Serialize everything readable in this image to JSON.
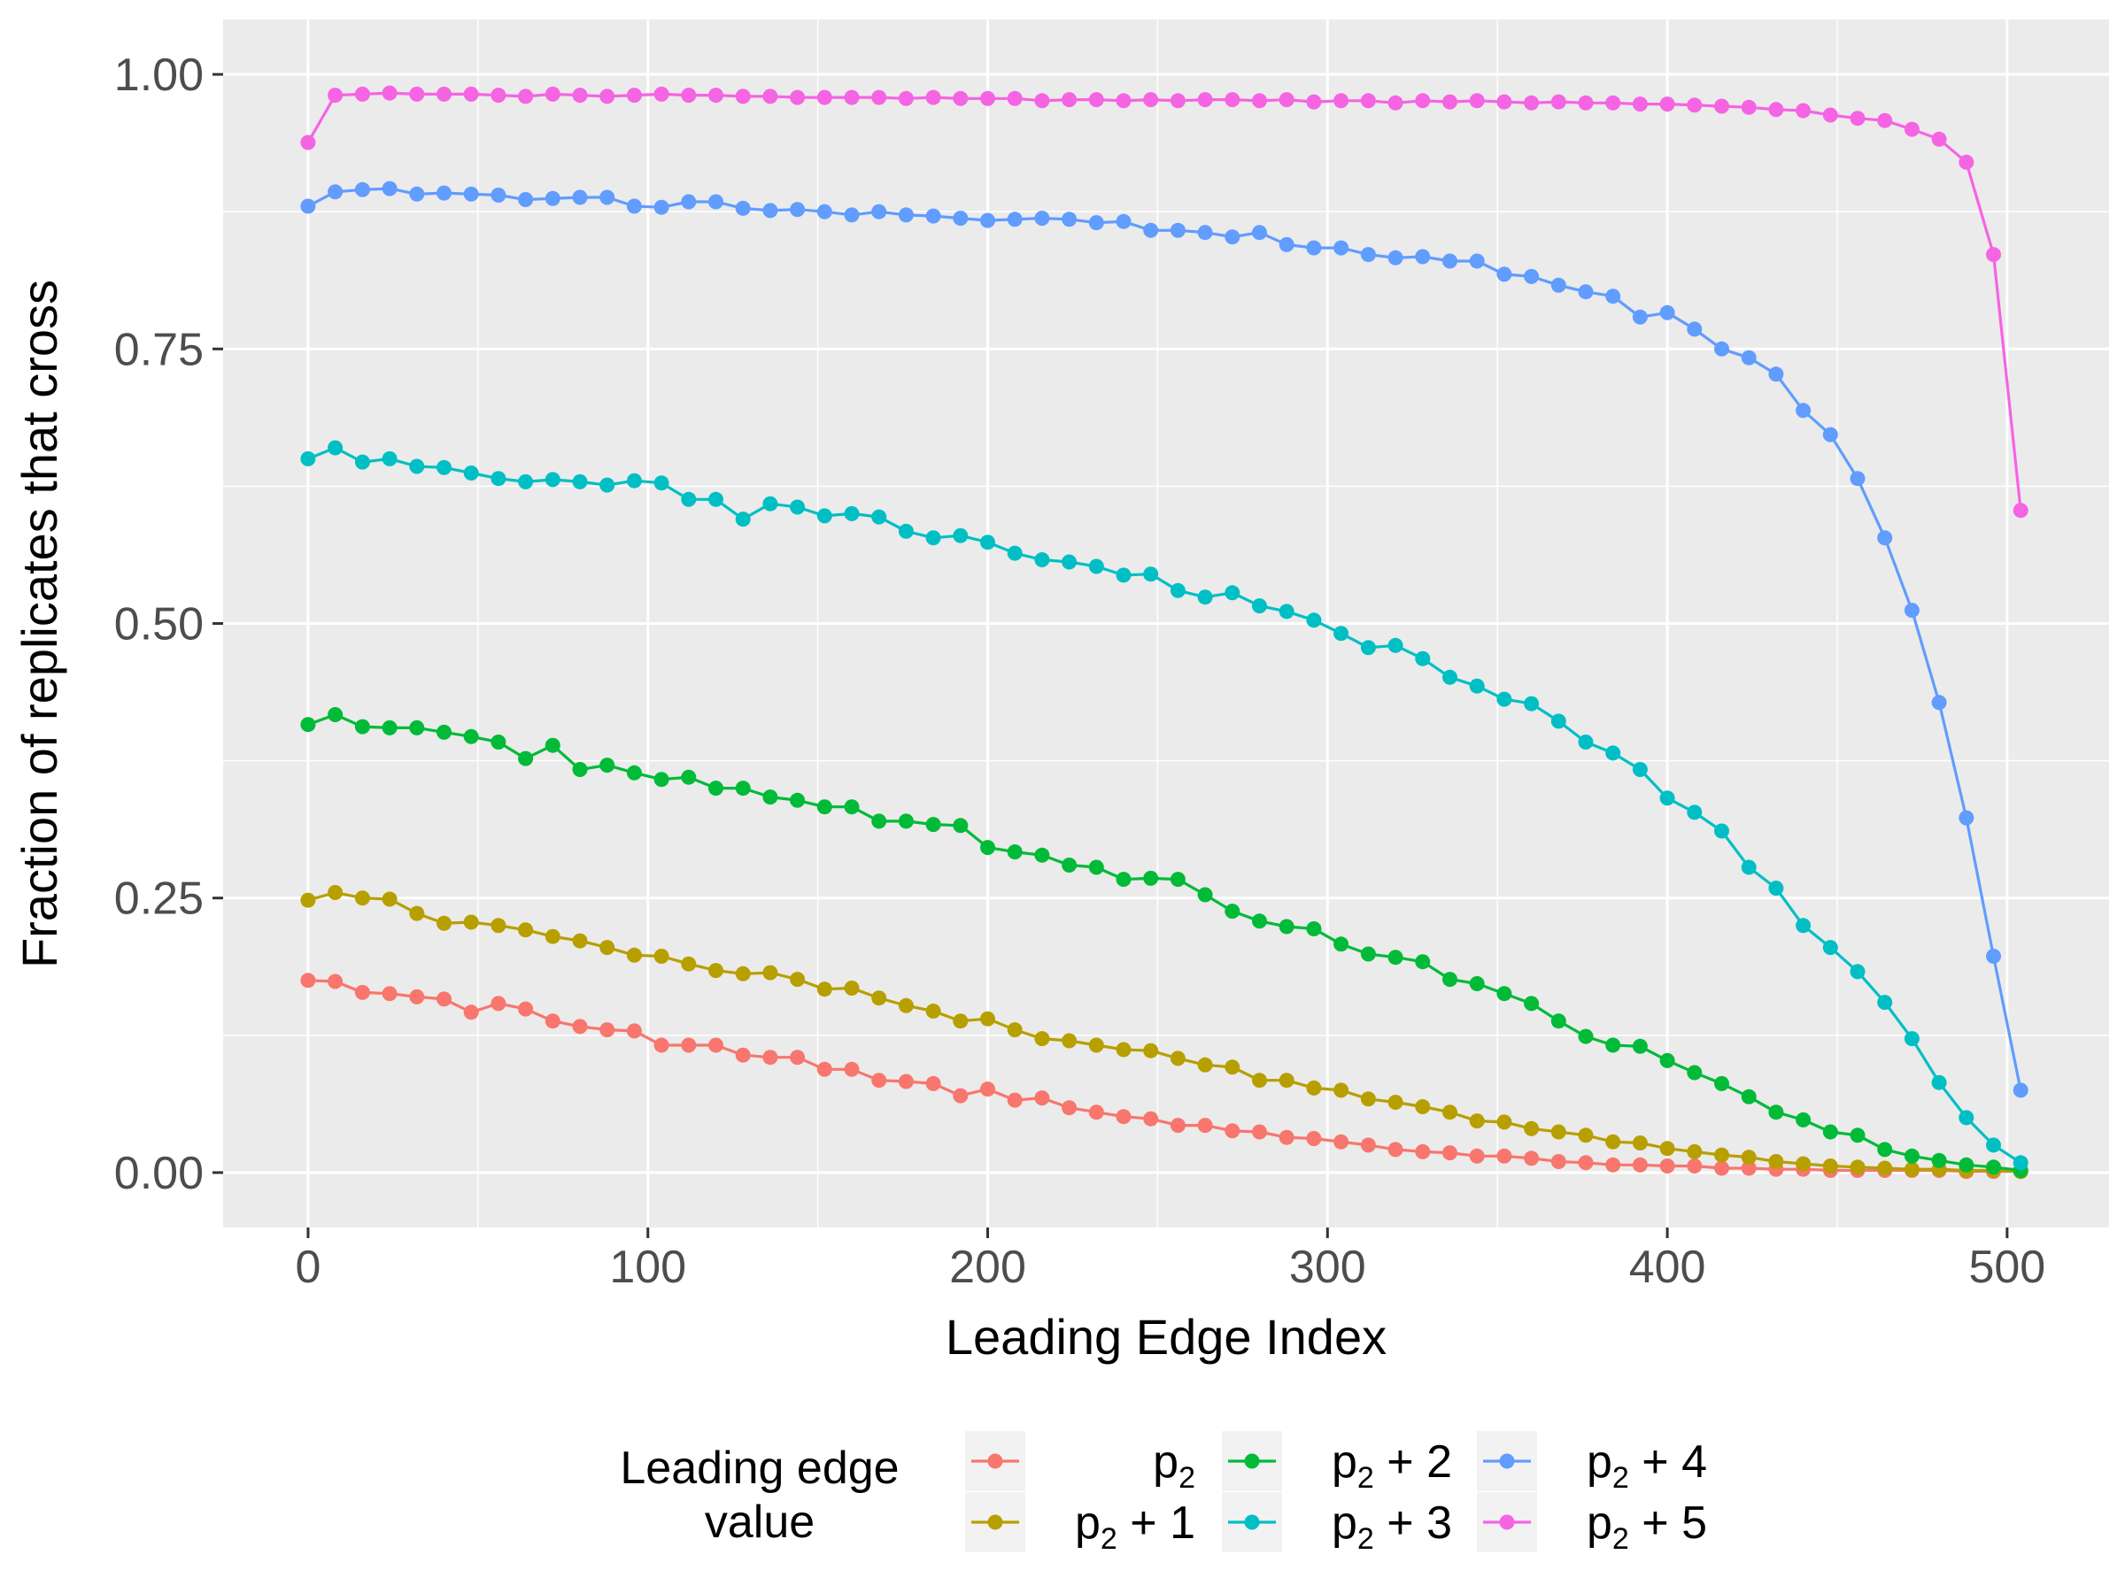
{
  "chart_data": {
    "type": "line",
    "xlabel": "Leading Edge Index",
    "ylabel": "Fraction of replicates that cross",
    "xlim": [
      -25,
      530
    ],
    "ylim": [
      -0.05,
      1.05
    ],
    "x_ticks": [
      0,
      100,
      200,
      300,
      400,
      500
    ],
    "x_tick_labels": [
      "0",
      "100",
      "200",
      "300",
      "400",
      "500"
    ],
    "y_ticks": [
      0,
      0.25,
      0.5,
      0.75,
      1.0
    ],
    "y_tick_labels": [
      "0.00",
      "0.25",
      "0.50",
      "0.75",
      "1.00"
    ],
    "grid": true,
    "legend": {
      "title_line1": "Leading edge",
      "title_line2": "value",
      "placement": "bottom"
    },
    "x": [
      0,
      8,
      16,
      24,
      32,
      40,
      48,
      56,
      64,
      72,
      80,
      88,
      96,
      104,
      112,
      120,
      128,
      136,
      144,
      152,
      160,
      168,
      176,
      184,
      192,
      200,
      208,
      216,
      224,
      232,
      240,
      248,
      256,
      264,
      272,
      280,
      288,
      296,
      304,
      312,
      320,
      328,
      336,
      344,
      352,
      360,
      368,
      376,
      384,
      392,
      400,
      408,
      416,
      424,
      432,
      440,
      448,
      456,
      464,
      472,
      480,
      488,
      496,
      504
    ],
    "series": [
      {
        "base": "p",
        "sub": "2",
        "suffix": "",
        "color": "#F8766D",
        "values": [
          0.175,
          0.174,
          0.164,
          0.163,
          0.16,
          0.158,
          0.146,
          0.154,
          0.149,
          0.138,
          0.133,
          0.13,
          0.129,
          0.116,
          0.116,
          0.116,
          0.107,
          0.105,
          0.105,
          0.094,
          0.094,
          0.084,
          0.083,
          0.081,
          0.07,
          0.076,
          0.066,
          0.068,
          0.059,
          0.055,
          0.051,
          0.049,
          0.043,
          0.043,
          0.038,
          0.037,
          0.032,
          0.031,
          0.028,
          0.025,
          0.021,
          0.019,
          0.018,
          0.015,
          0.015,
          0.013,
          0.01,
          0.009,
          0.007,
          0.007,
          0.006,
          0.006,
          0.004,
          0.004,
          0.003,
          0.003,
          0.002,
          0.002,
          0.002,
          0.002,
          0.002,
          0.001,
          0.001,
          0.001
        ]
      },
      {
        "base": "p",
        "sub": "2",
        "suffix": " + 1",
        "color": "#B79F00",
        "values": [
          0.248,
          0.255,
          0.25,
          0.249,
          0.236,
          0.227,
          0.228,
          0.225,
          0.221,
          0.215,
          0.211,
          0.205,
          0.198,
          0.197,
          0.19,
          0.184,
          0.181,
          0.182,
          0.176,
          0.167,
          0.168,
          0.159,
          0.152,
          0.147,
          0.138,
          0.14,
          0.13,
          0.122,
          0.12,
          0.116,
          0.112,
          0.111,
          0.104,
          0.098,
          0.096,
          0.084,
          0.084,
          0.077,
          0.075,
          0.067,
          0.064,
          0.06,
          0.055,
          0.047,
          0.046,
          0.04,
          0.037,
          0.034,
          0.028,
          0.027,
          0.022,
          0.019,
          0.016,
          0.014,
          0.01,
          0.008,
          0.006,
          0.005,
          0.004,
          0.003,
          0.003,
          0.002,
          0.002,
          0.001
        ]
      },
      {
        "base": "p",
        "sub": "2",
        "suffix": " + 2",
        "color": "#00BA38",
        "values": [
          0.408,
          0.417,
          0.406,
          0.405,
          0.405,
          0.401,
          0.397,
          0.392,
          0.377,
          0.389,
          0.367,
          0.371,
          0.364,
          0.358,
          0.36,
          0.35,
          0.35,
          0.342,
          0.339,
          0.333,
          0.333,
          0.32,
          0.32,
          0.317,
          0.316,
          0.296,
          0.292,
          0.289,
          0.28,
          0.278,
          0.267,
          0.268,
          0.267,
          0.253,
          0.238,
          0.229,
          0.224,
          0.222,
          0.208,
          0.199,
          0.196,
          0.192,
          0.176,
          0.172,
          0.163,
          0.154,
          0.138,
          0.124,
          0.116,
          0.115,
          0.102,
          0.091,
          0.081,
          0.069,
          0.055,
          0.048,
          0.037,
          0.034,
          0.021,
          0.015,
          0.011,
          0.007,
          0.005,
          0.002
        ]
      },
      {
        "base": "p",
        "sub": "2",
        "suffix": " + 3",
        "color": "#00BFC4",
        "values": [
          0.65,
          0.66,
          0.647,
          0.65,
          0.643,
          0.642,
          0.637,
          0.632,
          0.629,
          0.631,
          0.629,
          0.626,
          0.63,
          0.628,
          0.613,
          0.613,
          0.595,
          0.609,
          0.606,
          0.598,
          0.6,
          0.597,
          0.584,
          0.578,
          0.58,
          0.574,
          0.564,
          0.558,
          0.556,
          0.552,
          0.544,
          0.545,
          0.53,
          0.524,
          0.528,
          0.516,
          0.511,
          0.503,
          0.491,
          0.478,
          0.48,
          0.468,
          0.451,
          0.443,
          0.431,
          0.427,
          0.411,
          0.392,
          0.382,
          0.367,
          0.341,
          0.328,
          0.311,
          0.278,
          0.259,
          0.225,
          0.205,
          0.183,
          0.155,
          0.122,
          0.082,
          0.05,
          0.025,
          0.009
        ]
      },
      {
        "base": "p",
        "sub": "2",
        "suffix": " + 4",
        "color": "#619CFF",
        "values": [
          0.88,
          0.893,
          0.895,
          0.896,
          0.891,
          0.892,
          0.891,
          0.89,
          0.886,
          0.887,
          0.888,
          0.888,
          0.88,
          0.879,
          0.884,
          0.884,
          0.878,
          0.876,
          0.877,
          0.875,
          0.872,
          0.875,
          0.872,
          0.871,
          0.869,
          0.867,
          0.868,
          0.869,
          0.868,
          0.865,
          0.866,
          0.858,
          0.858,
          0.856,
          0.852,
          0.856,
          0.845,
          0.842,
          0.842,
          0.836,
          0.833,
          0.834,
          0.83,
          0.83,
          0.818,
          0.816,
          0.808,
          0.802,
          0.798,
          0.779,
          0.783,
          0.768,
          0.75,
          0.742,
          0.727,
          0.694,
          0.672,
          0.632,
          0.578,
          0.512,
          0.428,
          0.323,
          0.197,
          0.075
        ]
      },
      {
        "base": "p",
        "sub": "2",
        "suffix": " + 5",
        "color": "#F564E3",
        "values": [
          0.938,
          0.981,
          0.982,
          0.983,
          0.982,
          0.982,
          0.982,
          0.981,
          0.98,
          0.982,
          0.981,
          0.98,
          0.981,
          0.982,
          0.981,
          0.981,
          0.98,
          0.98,
          0.979,
          0.979,
          0.979,
          0.979,
          0.978,
          0.979,
          0.978,
          0.978,
          0.978,
          0.976,
          0.977,
          0.977,
          0.976,
          0.977,
          0.976,
          0.977,
          0.977,
          0.976,
          0.977,
          0.975,
          0.976,
          0.976,
          0.974,
          0.976,
          0.975,
          0.976,
          0.975,
          0.974,
          0.975,
          0.974,
          0.974,
          0.973,
          0.973,
          0.972,
          0.971,
          0.97,
          0.968,
          0.967,
          0.963,
          0.96,
          0.958,
          0.95,
          0.941,
          0.92,
          0.836,
          0.603
        ]
      }
    ]
  }
}
